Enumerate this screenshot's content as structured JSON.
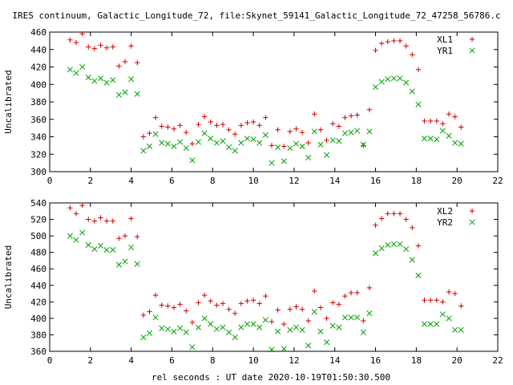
{
  "title": "IRES continuum, Galactic_Longitude_72, file:Skynet_59141_Galactic_Longitude_72_47258_56786.c",
  "xlabel": "rel seconds : UT date 2020-10-19T01:50:30.500",
  "colors": {
    "red": "#d40000",
    "green": "#00a000"
  },
  "chart_data": [
    {
      "type": "scatter",
      "ylabel": "Uncalibrated",
      "xlim": [
        0,
        22
      ],
      "ylim": [
        300,
        460
      ],
      "xticks": [
        "0",
        "2",
        "4",
        "6",
        "8",
        "10",
        "12",
        "14",
        "16",
        "18",
        "20",
        "22"
      ],
      "yticks": [
        "300",
        "320",
        "340",
        "360",
        "380",
        "400",
        "420",
        "440",
        "460"
      ],
      "x": [
        1.0,
        1.3,
        1.6,
        1.9,
        2.2,
        2.5,
        2.8,
        3.1,
        3.4,
        3.7,
        4.0,
        4.3,
        4.6,
        4.9,
        5.2,
        5.5,
        5.8,
        6.1,
        6.4,
        6.7,
        7.0,
        7.3,
        7.6,
        7.9,
        8.2,
        8.5,
        8.8,
        9.1,
        9.4,
        9.7,
        10.0,
        10.3,
        10.6,
        10.9,
        11.2,
        11.5,
        11.8,
        12.1,
        12.4,
        12.7,
        13.0,
        13.3,
        13.6,
        13.9,
        14.2,
        14.5,
        14.8,
        15.1,
        15.4,
        15.7,
        16.0,
        16.3,
        16.6,
        16.9,
        17.2,
        17.5,
        17.8,
        18.1,
        18.4,
        18.7,
        19.0,
        19.3,
        19.6,
        19.9,
        20.2
      ],
      "series": [
        {
          "name": "XL1",
          "marker": "plus",
          "values": [
            451,
            448,
            458,
            443,
            441,
            445,
            442,
            443,
            421,
            426,
            444,
            425,
            340,
            344,
            362,
            352,
            351,
            349,
            353,
            345,
            332,
            354,
            363,
            357,
            353,
            354,
            348,
            343,
            353,
            356,
            357,
            353,
            362,
            330,
            348,
            329,
            346,
            349,
            345,
            333,
            366,
            348,
            336,
            355,
            352,
            362,
            364,
            365,
            330,
            371,
            439,
            447,
            449,
            450,
            450,
            444,
            434,
            417,
            358,
            358,
            358,
            355,
            366,
            363,
            351
          ]
        },
        {
          "name": "YR1",
          "marker": "x",
          "values": [
            417,
            413,
            420,
            408,
            404,
            407,
            402,
            405,
            388,
            391,
            406,
            389,
            324,
            329,
            343,
            333,
            332,
            329,
            334,
            327,
            313,
            334,
            344,
            338,
            333,
            335,
            328,
            324,
            333,
            338,
            337,
            333,
            342,
            310,
            328,
            312,
            327,
            332,
            329,
            316,
            346,
            331,
            319,
            336,
            335,
            344,
            345,
            347,
            331,
            346,
            397,
            403,
            406,
            407,
            407,
            402,
            392,
            377,
            338,
            338,
            337,
            347,
            341,
            333,
            332
          ]
        }
      ]
    },
    {
      "type": "scatter",
      "ylabel": "Uncalibrated",
      "xlim": [
        0,
        22
      ],
      "ylim": [
        360,
        540
      ],
      "xticks": [
        "0",
        "2",
        "4",
        "6",
        "8",
        "10",
        "12",
        "14",
        "16",
        "18",
        "20",
        "22"
      ],
      "yticks": [
        "360",
        "380",
        "400",
        "420",
        "440",
        "460",
        "480",
        "500",
        "520",
        "540"
      ],
      "x": [
        1.0,
        1.3,
        1.6,
        1.9,
        2.2,
        2.5,
        2.8,
        3.1,
        3.4,
        3.7,
        4.0,
        4.3,
        4.6,
        4.9,
        5.2,
        5.5,
        5.8,
        6.1,
        6.4,
        6.7,
        7.0,
        7.3,
        7.6,
        7.9,
        8.2,
        8.5,
        8.8,
        9.1,
        9.4,
        9.7,
        10.0,
        10.3,
        10.6,
        10.9,
        11.2,
        11.5,
        11.8,
        12.1,
        12.4,
        12.7,
        13.0,
        13.3,
        13.6,
        13.9,
        14.2,
        14.5,
        14.8,
        15.1,
        15.4,
        15.7,
        16.0,
        16.3,
        16.6,
        16.9,
        17.2,
        17.5,
        17.8,
        18.1,
        18.4,
        18.7,
        19.0,
        19.3,
        19.6,
        19.9,
        20.2
      ],
      "series": [
        {
          "name": "XL2",
          "marker": "plus",
          "values": [
            534,
            527,
            537,
            520,
            518,
            522,
            518,
            518,
            497,
            500,
            521,
            499,
            404,
            408,
            428,
            416,
            415,
            413,
            417,
            409,
            395,
            419,
            428,
            421,
            416,
            418,
            411,
            406,
            418,
            421,
            422,
            418,
            427,
            396,
            410,
            393,
            411,
            414,
            411,
            397,
            433,
            413,
            400,
            419,
            417,
            427,
            431,
            431,
            397,
            437,
            513,
            521,
            527,
            527,
            527,
            520,
            510,
            488,
            422,
            422,
            422,
            420,
            432,
            430,
            415
          ]
        },
        {
          "name": "YR2",
          "marker": "x",
          "values": [
            500,
            495,
            504,
            489,
            484,
            488,
            483,
            483,
            465,
            469,
            486,
            466,
            377,
            382,
            401,
            388,
            387,
            384,
            388,
            383,
            365,
            389,
            400,
            393,
            387,
            389,
            383,
            377,
            389,
            393,
            393,
            389,
            398,
            362,
            384,
            363,
            386,
            389,
            386,
            367,
            408,
            384,
            371,
            391,
            389,
            401,
            401,
            401,
            383,
            406,
            479,
            485,
            489,
            490,
            490,
            484,
            471,
            452,
            393,
            393,
            393,
            405,
            400,
            386,
            386
          ]
        }
      ]
    }
  ]
}
